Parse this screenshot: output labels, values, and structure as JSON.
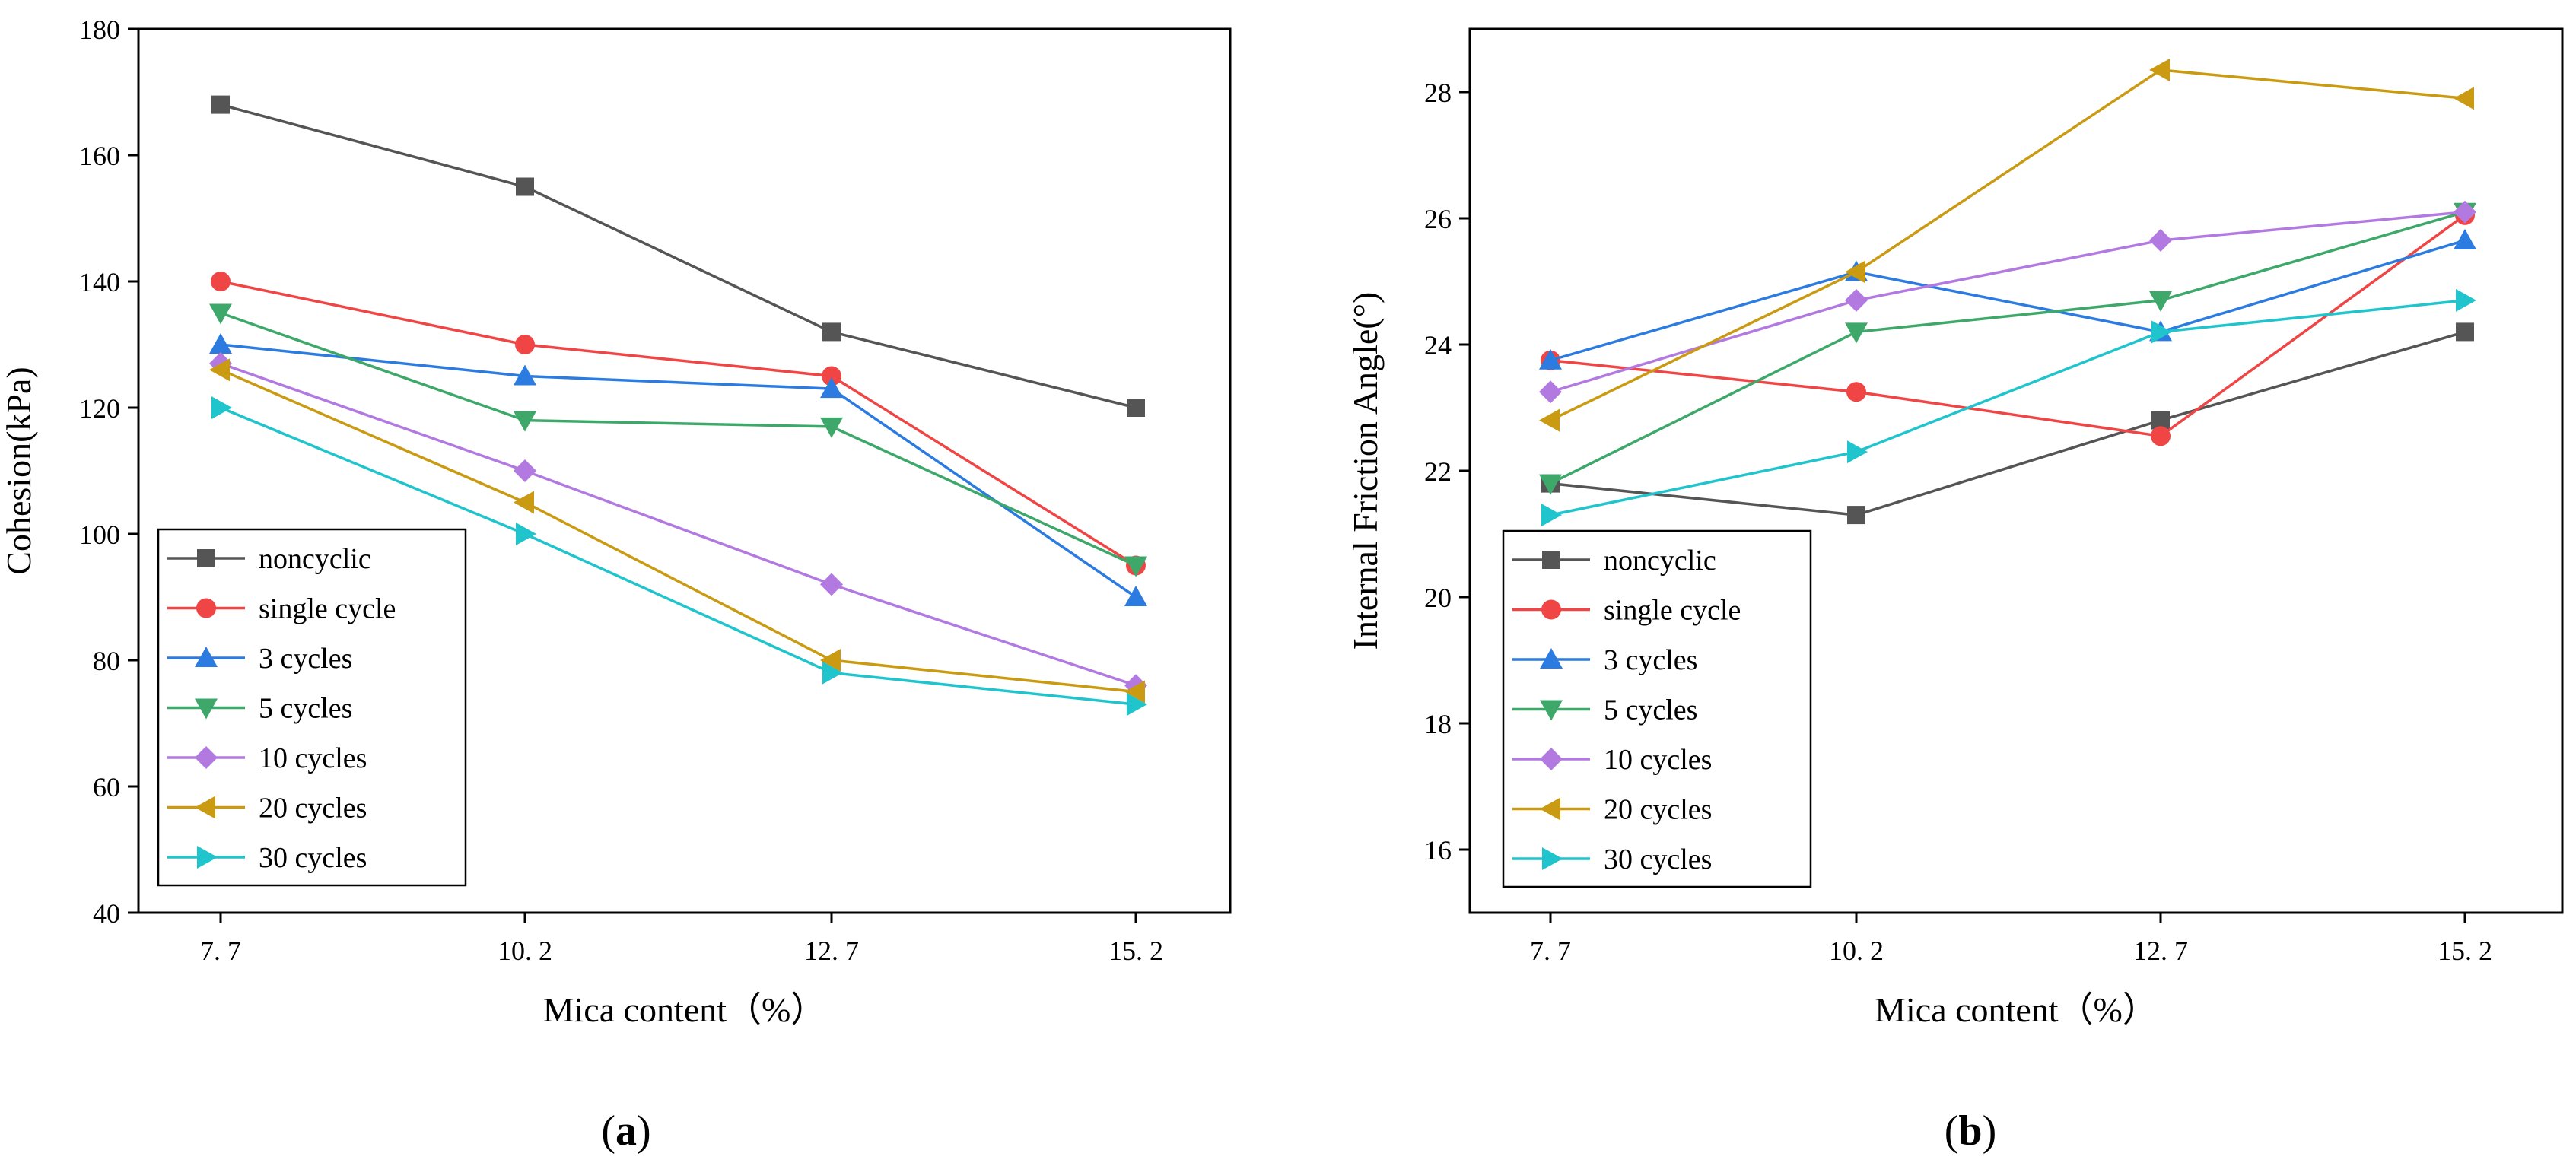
{
  "series_style": [
    {
      "name": "noncyclic",
      "color": "#555555",
      "marker": "square"
    },
    {
      "name": "single cycle",
      "color": "#f04545",
      "marker": "circle"
    },
    {
      "name": "3 cycles",
      "color": "#2c7be0",
      "marker": "triangle-up"
    },
    {
      "name": "5 cycles",
      "color": "#3da86a",
      "marker": "triangle-down"
    },
    {
      "name": "10 cycles",
      "color": "#b27ae0",
      "marker": "diamond"
    },
    {
      "name": "20 cycles",
      "color": "#c99a12",
      "marker": "triangle-left"
    },
    {
      "name": "30 cycles",
      "color": "#1fc4cc",
      "marker": "triangle-right"
    }
  ],
  "chart_data": [
    {
      "type": "line",
      "panel": "a",
      "caption_letter": "a",
      "xlabel": "Mica content（%）",
      "ylabel": "Cohesion(kPa)",
      "categories": [
        "7. 7",
        "10. 2",
        "12. 7",
        "15. 2"
      ],
      "ylim": [
        40,
        180
      ],
      "yticks": [
        40,
        60,
        80,
        100,
        120,
        140,
        160,
        180
      ],
      "legend_position": "bottom-left",
      "series": [
        {
          "name": "noncyclic",
          "values": [
            168,
            155,
            132,
            120
          ]
        },
        {
          "name": "single cycle",
          "values": [
            140,
            130,
            125,
            95
          ]
        },
        {
          "name": "3 cycles",
          "values": [
            130,
            125,
            123,
            90
          ]
        },
        {
          "name": "5 cycles",
          "values": [
            135,
            118,
            117,
            95
          ]
        },
        {
          "name": "10 cycles",
          "values": [
            127,
            110,
            92,
            76
          ]
        },
        {
          "name": "20 cycles",
          "values": [
            126,
            105,
            80,
            75
          ]
        },
        {
          "name": "30 cycles",
          "values": [
            120,
            100,
            78,
            73
          ]
        }
      ]
    },
    {
      "type": "line",
      "panel": "b",
      "caption_letter": "b",
      "xlabel": "Mica content（%）",
      "ylabel": "Internal Friction Angle(°)",
      "categories": [
        "7. 7",
        "10. 2",
        "12. 7",
        "15. 2"
      ],
      "ylim": [
        15,
        29
      ],
      "yticks": [
        16,
        18,
        20,
        22,
        24,
        26,
        28
      ],
      "legend_position": "bottom-left",
      "series": [
        {
          "name": "noncyclic",
          "values": [
            21.8,
            21.3,
            22.8,
            24.2
          ]
        },
        {
          "name": "single cycle",
          "values": [
            23.75,
            23.25,
            22.55,
            26.05
          ]
        },
        {
          "name": "3 cycles",
          "values": [
            23.75,
            25.15,
            24.2,
            25.65
          ]
        },
        {
          "name": "5 cycles",
          "values": [
            21.8,
            24.2,
            24.7,
            26.1
          ]
        },
        {
          "name": "10 cycles",
          "values": [
            23.25,
            24.7,
            25.65,
            26.1
          ]
        },
        {
          "name": "20 cycles",
          "values": [
            22.8,
            25.15,
            28.35,
            27.9
          ]
        },
        {
          "name": "30 cycles",
          "values": [
            21.3,
            22.3,
            24.2,
            24.7
          ]
        }
      ]
    }
  ]
}
